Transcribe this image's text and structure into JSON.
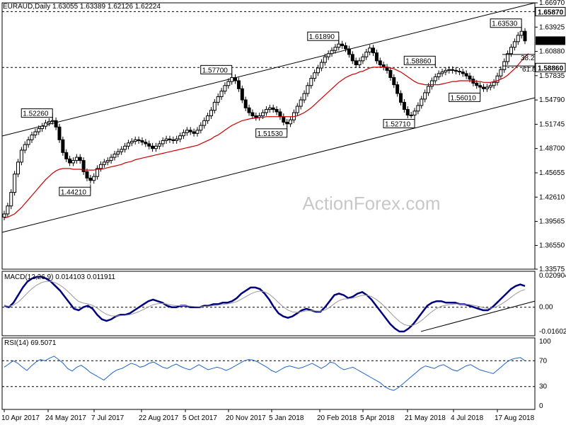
{
  "chart_data": [
    {
      "type": "candlestick",
      "header": "EURAUD,Daily  1.63055 1.63389 1.62126 1.62224",
      "last_price": "1.62224",
      "x_tick_labels": [
        "10 Apr 2017",
        "24 May 2017",
        "7 Jul 2017",
        "22 Aug 2017",
        "5 Oct 2017",
        "20 Nov 2017",
        "5 Jan 2018",
        "20 Feb 2018",
        "5 Apr 2018",
        "21 May 2018",
        "4 Jul 2018",
        "17 Aug 2018"
      ],
      "y_tick_labels": [
        "1.66970",
        "1.63925",
        "1.60880",
        "1.57835",
        "1.54790",
        "1.51745",
        "1.48700",
        "1.45655",
        "1.42610",
        "1.39565",
        "1.36550",
        "1.33575"
      ],
      "y_range": [
        1.33575,
        1.6697
      ],
      "horizontal_levels": [
        {
          "label": "1.65870",
          "value": 1.6587
        },
        {
          "label": "1.58860",
          "value": 1.5886
        }
      ],
      "fib_labels": [
        "38.2",
        "61.8"
      ],
      "annotations": [
        "1.52260",
        "1.44210",
        "1.57700",
        "1.51530",
        "1.61890",
        "1.52710",
        "1.58860",
        "1.56010",
        "1.63530"
      ],
      "series": [
        {
          "name": "price",
          "color": "#000000",
          "values": [
            1.405,
            1.415,
            1.432,
            1.455,
            1.47,
            1.485,
            1.492,
            1.498,
            1.504,
            1.508,
            1.512,
            1.515,
            1.519,
            1.521,
            1.522,
            1.514,
            1.498,
            1.482,
            1.474,
            1.469,
            1.472,
            1.476,
            1.472,
            1.458,
            1.45,
            1.447,
            1.452,
            1.462,
            1.467,
            1.47,
            1.472,
            1.476,
            1.48,
            1.483,
            1.486,
            1.49,
            1.494,
            1.496,
            1.498,
            1.497,
            1.495,
            1.493,
            1.49,
            1.487,
            1.49,
            1.493,
            1.497,
            1.499,
            1.498,
            1.497,
            1.499,
            1.503,
            1.507,
            1.51,
            1.508,
            1.506,
            1.51,
            1.516,
            1.522,
            1.528,
            1.535,
            1.545,
            1.552,
            1.559,
            1.566,
            1.571,
            1.576,
            1.572,
            1.562,
            1.548,
            1.538,
            1.532,
            1.528,
            1.526,
            1.528,
            1.532,
            1.536,
            1.538,
            1.536,
            1.533,
            1.527,
            1.52,
            1.518,
            1.523,
            1.532,
            1.54,
            1.548,
            1.556,
            1.566,
            1.575,
            1.582,
            1.588,
            1.595,
            1.602,
            1.606,
            1.61,
            1.614,
            1.618,
            1.616,
            1.612,
            1.605,
            1.597,
            1.592,
            1.597,
            1.602,
            1.608,
            1.613,
            1.607,
            1.597,
            1.592,
            1.589,
            1.585,
            1.576,
            1.567,
            1.556,
            1.545,
            1.536,
            1.529,
            1.529,
            1.534,
            1.541,
            1.549,
            1.557,
            1.565,
            1.572,
            1.577,
            1.581,
            1.583,
            1.585,
            1.586,
            1.585,
            1.584,
            1.583,
            1.581,
            1.578,
            1.574,
            1.569,
            1.566,
            1.564,
            1.562,
            1.564,
            1.566,
            1.57,
            1.578,
            1.586,
            1.596,
            1.606,
            1.614,
            1.621,
            1.629,
            1.634,
            1.622
          ]
        },
        {
          "name": "moving-average",
          "color": "#cc0000",
          "values": [
            1.4,
            1.401,
            1.403,
            1.405,
            1.409,
            1.413,
            1.418,
            1.423,
            1.428,
            1.433,
            1.438,
            1.443,
            1.448,
            1.452,
            1.456,
            1.459,
            1.461,
            1.462,
            1.462,
            1.462,
            1.461,
            1.461,
            1.461,
            1.46,
            1.46,
            1.46,
            1.46,
            1.461,
            1.461,
            1.462,
            1.463,
            1.464,
            1.465,
            1.466,
            1.467,
            1.469,
            1.47,
            1.471,
            1.473,
            1.474,
            1.475,
            1.476,
            1.477,
            1.478,
            1.479,
            1.48,
            1.481,
            1.482,
            1.483,
            1.484,
            1.485,
            1.486,
            1.487,
            1.488,
            1.489,
            1.49,
            1.491,
            1.493,
            1.495,
            1.497,
            1.499,
            1.502,
            1.504,
            1.507,
            1.51,
            1.513,
            1.516,
            1.518,
            1.52,
            1.522,
            1.523,
            1.524,
            1.525,
            1.525,
            1.526,
            1.526,
            1.527,
            1.527,
            1.527,
            1.527,
            1.527,
            1.527,
            1.527,
            1.527,
            1.527,
            1.528,
            1.53,
            1.532,
            1.535,
            1.538,
            1.542,
            1.546,
            1.55,
            1.554,
            1.558,
            1.562,
            1.566,
            1.57,
            1.573,
            1.576,
            1.578,
            1.58,
            1.581,
            1.583,
            1.584,
            1.586,
            1.588,
            1.589,
            1.589,
            1.589,
            1.589,
            1.589,
            1.588,
            1.587,
            1.585,
            1.583,
            1.58,
            1.577,
            1.574,
            1.571,
            1.569,
            1.568,
            1.567,
            1.567,
            1.567,
            1.567,
            1.567,
            1.568,
            1.569,
            1.57,
            1.571,
            1.571,
            1.572,
            1.572,
            1.572,
            1.572,
            1.572,
            1.571,
            1.571,
            1.57,
            1.57,
            1.57,
            1.571,
            1.572,
            1.574,
            1.576,
            1.579,
            1.583,
            1.587,
            1.592,
            1.597,
            1.602,
            1.606
          ]
        }
      ]
    },
    {
      "type": "line",
      "header": "MACD(12,26,9) 0.014103 0.011911",
      "y_tick_labels": [
        "0.020904",
        "0.00",
        "-0.016023"
      ],
      "y_range": [
        -0.016023,
        0.020904
      ],
      "series": [
        {
          "name": "macd-main",
          "color": "#000080",
          "values": [
            0.001,
            0.0,
            0.003,
            0.008,
            0.013,
            0.017,
            0.019,
            0.02,
            0.02,
            0.019,
            0.017,
            0.014,
            0.011,
            0.007,
            0.003,
            -0.001,
            -0.002,
            0.0,
            0.001,
            -0.001,
            -0.005,
            -0.008,
            -0.009,
            -0.008,
            -0.006,
            -0.005,
            -0.005,
            -0.004,
            -0.002,
            0.0,
            0.002,
            0.004,
            0.005,
            0.004,
            0.003,
            0.001,
            0.0,
            0.0,
            0.001,
            0.001,
            0.0,
            0.0,
            0.0,
            0.001,
            0.001,
            0.002,
            0.002,
            0.003,
            0.003,
            0.004,
            0.006,
            0.009,
            0.011,
            0.013,
            0.013,
            0.012,
            0.009,
            0.005,
            0.0,
            -0.004,
            -0.006,
            -0.007,
            -0.006,
            -0.004,
            -0.002,
            -0.001,
            -0.002,
            -0.003,
            -0.003,
            0.0,
            0.004,
            0.008,
            0.009,
            0.008,
            0.006,
            0.007,
            0.009,
            0.01,
            0.008,
            0.005,
            0.001,
            -0.003,
            -0.007,
            -0.011,
            -0.014,
            -0.016,
            -0.016,
            -0.014,
            -0.011,
            -0.007,
            -0.003,
            0.001,
            0.003,
            0.004,
            0.004,
            0.003,
            0.003,
            0.003,
            0.002,
            0.002,
            0.001,
            0.0,
            -0.001,
            -0.002,
            -0.002,
            0.0,
            0.003,
            0.006,
            0.009,
            0.012,
            0.014,
            0.015,
            0.014
          ]
        }
      ]
    },
    {
      "type": "line",
      "header": "RSI(14) 69.5071",
      "y_tick_labels": [
        "100",
        "70",
        "30",
        "0"
      ],
      "y_range": [
        0,
        100
      ],
      "levels": [
        70,
        30
      ],
      "series": [
        {
          "name": "rsi",
          "color": "#1e64c8",
          "values": [
            60,
            65,
            70,
            66,
            60,
            55,
            62,
            68,
            72,
            70,
            74,
            77,
            72,
            66,
            58,
            54,
            60,
            63,
            58,
            52,
            48,
            44,
            40,
            46,
            52,
            56,
            58,
            62,
            66,
            64,
            60,
            62,
            66,
            68,
            64,
            60,
            58,
            62,
            65,
            61,
            58,
            56,
            60,
            64,
            60,
            56,
            58,
            60,
            58,
            55,
            58,
            62,
            66,
            70,
            72,
            71,
            68,
            64,
            60,
            55,
            52,
            56,
            60,
            62,
            60,
            58,
            60,
            63,
            66,
            62,
            58,
            62,
            68,
            66,
            60,
            56,
            58,
            60,
            56,
            52,
            48,
            44,
            40,
            36,
            30,
            26,
            24,
            28,
            34,
            40,
            46,
            52,
            58,
            62,
            60,
            58,
            62,
            64,
            60,
            56,
            54,
            58,
            62,
            64,
            60,
            56,
            54,
            52,
            50,
            56,
            62,
            68,
            72,
            74,
            75,
            70
          ]
        }
      ]
    }
  ],
  "watermark": "ActionForex.com"
}
